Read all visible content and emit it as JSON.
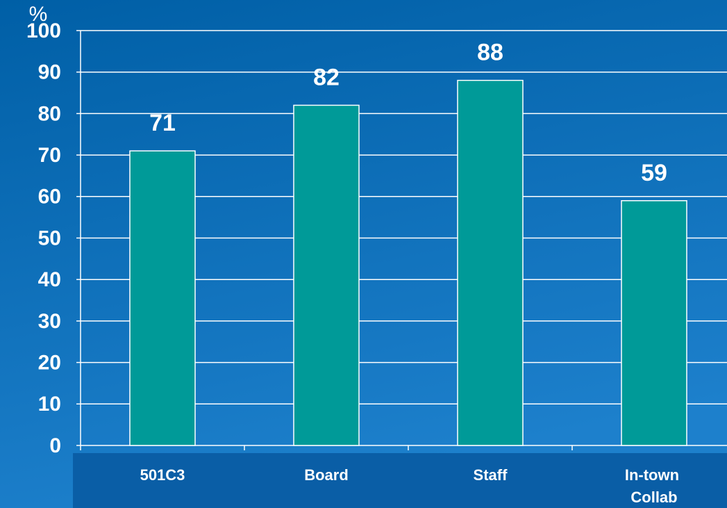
{
  "chart_data": {
    "type": "bar",
    "y_label": "%",
    "categories": [
      "501C3",
      "Board",
      "Staff",
      "In-town Collab"
    ],
    "values": [
      71,
      82,
      88,
      59
    ],
    "color": "#009a98",
    "ylim": [
      0,
      100
    ],
    "yticks": [
      0,
      10,
      20,
      30,
      40,
      50,
      60,
      70,
      80,
      90,
      100
    ],
    "grid": true
  }
}
